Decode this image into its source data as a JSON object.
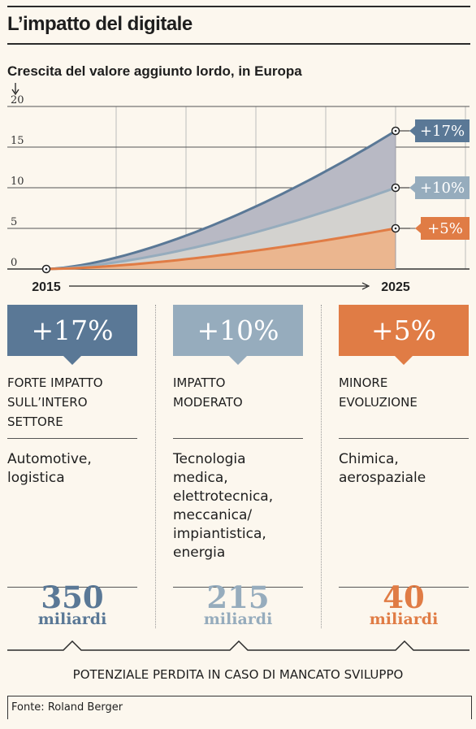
{
  "title": "L’impatto del digitale",
  "subtitle": "Crescita del valore aggiunto lordo, in Europa",
  "chart_data": {
    "type": "area",
    "y_ticks": [
      "20",
      "15",
      "10",
      "5",
      "0"
    ],
    "ylim": [
      0,
      20
    ],
    "x_start_label": "2015",
    "x_end_label": "2025",
    "series": [
      {
        "label": "+17%",
        "start": 0,
        "end": 17,
        "color": "#5a7896"
      },
      {
        "label": "+10%",
        "start": 0,
        "end": 10,
        "color": "#96acbd"
      },
      {
        "label": "+5%",
        "start": 0,
        "end": 5,
        "color": "#e07c45"
      }
    ],
    "grid": true
  },
  "columns": [
    {
      "pct": "+17%",
      "color": "#5a7896",
      "impact": [
        "FORTE IMPATTO",
        "SULL’INTERO",
        "SETTORE"
      ],
      "sectors": [
        "Automotive,",
        "logistica"
      ],
      "amount": "350",
      "unit": "miliardi"
    },
    {
      "pct": "+10%",
      "color": "#96acbd",
      "impact": [
        "IMPATTO",
        "MODERATO"
      ],
      "sectors": [
        "Tecnologia",
        "medica,",
        "elettrotecnica,",
        "meccanica/",
        "impiantistica,",
        "energia"
      ],
      "amount": "215",
      "unit": "miliardi"
    },
    {
      "pct": "+5%",
      "color": "#e07c45",
      "impact": [
        "MINORE",
        "EVOLUZIONE"
      ],
      "sectors": [
        "Chimica,",
        "aerospaziale"
      ],
      "amount": "40",
      "unit": "miliardi"
    }
  ],
  "footer": "POTENZIALE PERDITA IN CASO DI MANCATO SVILUPPO",
  "source": "Fonte: Roland Berger"
}
